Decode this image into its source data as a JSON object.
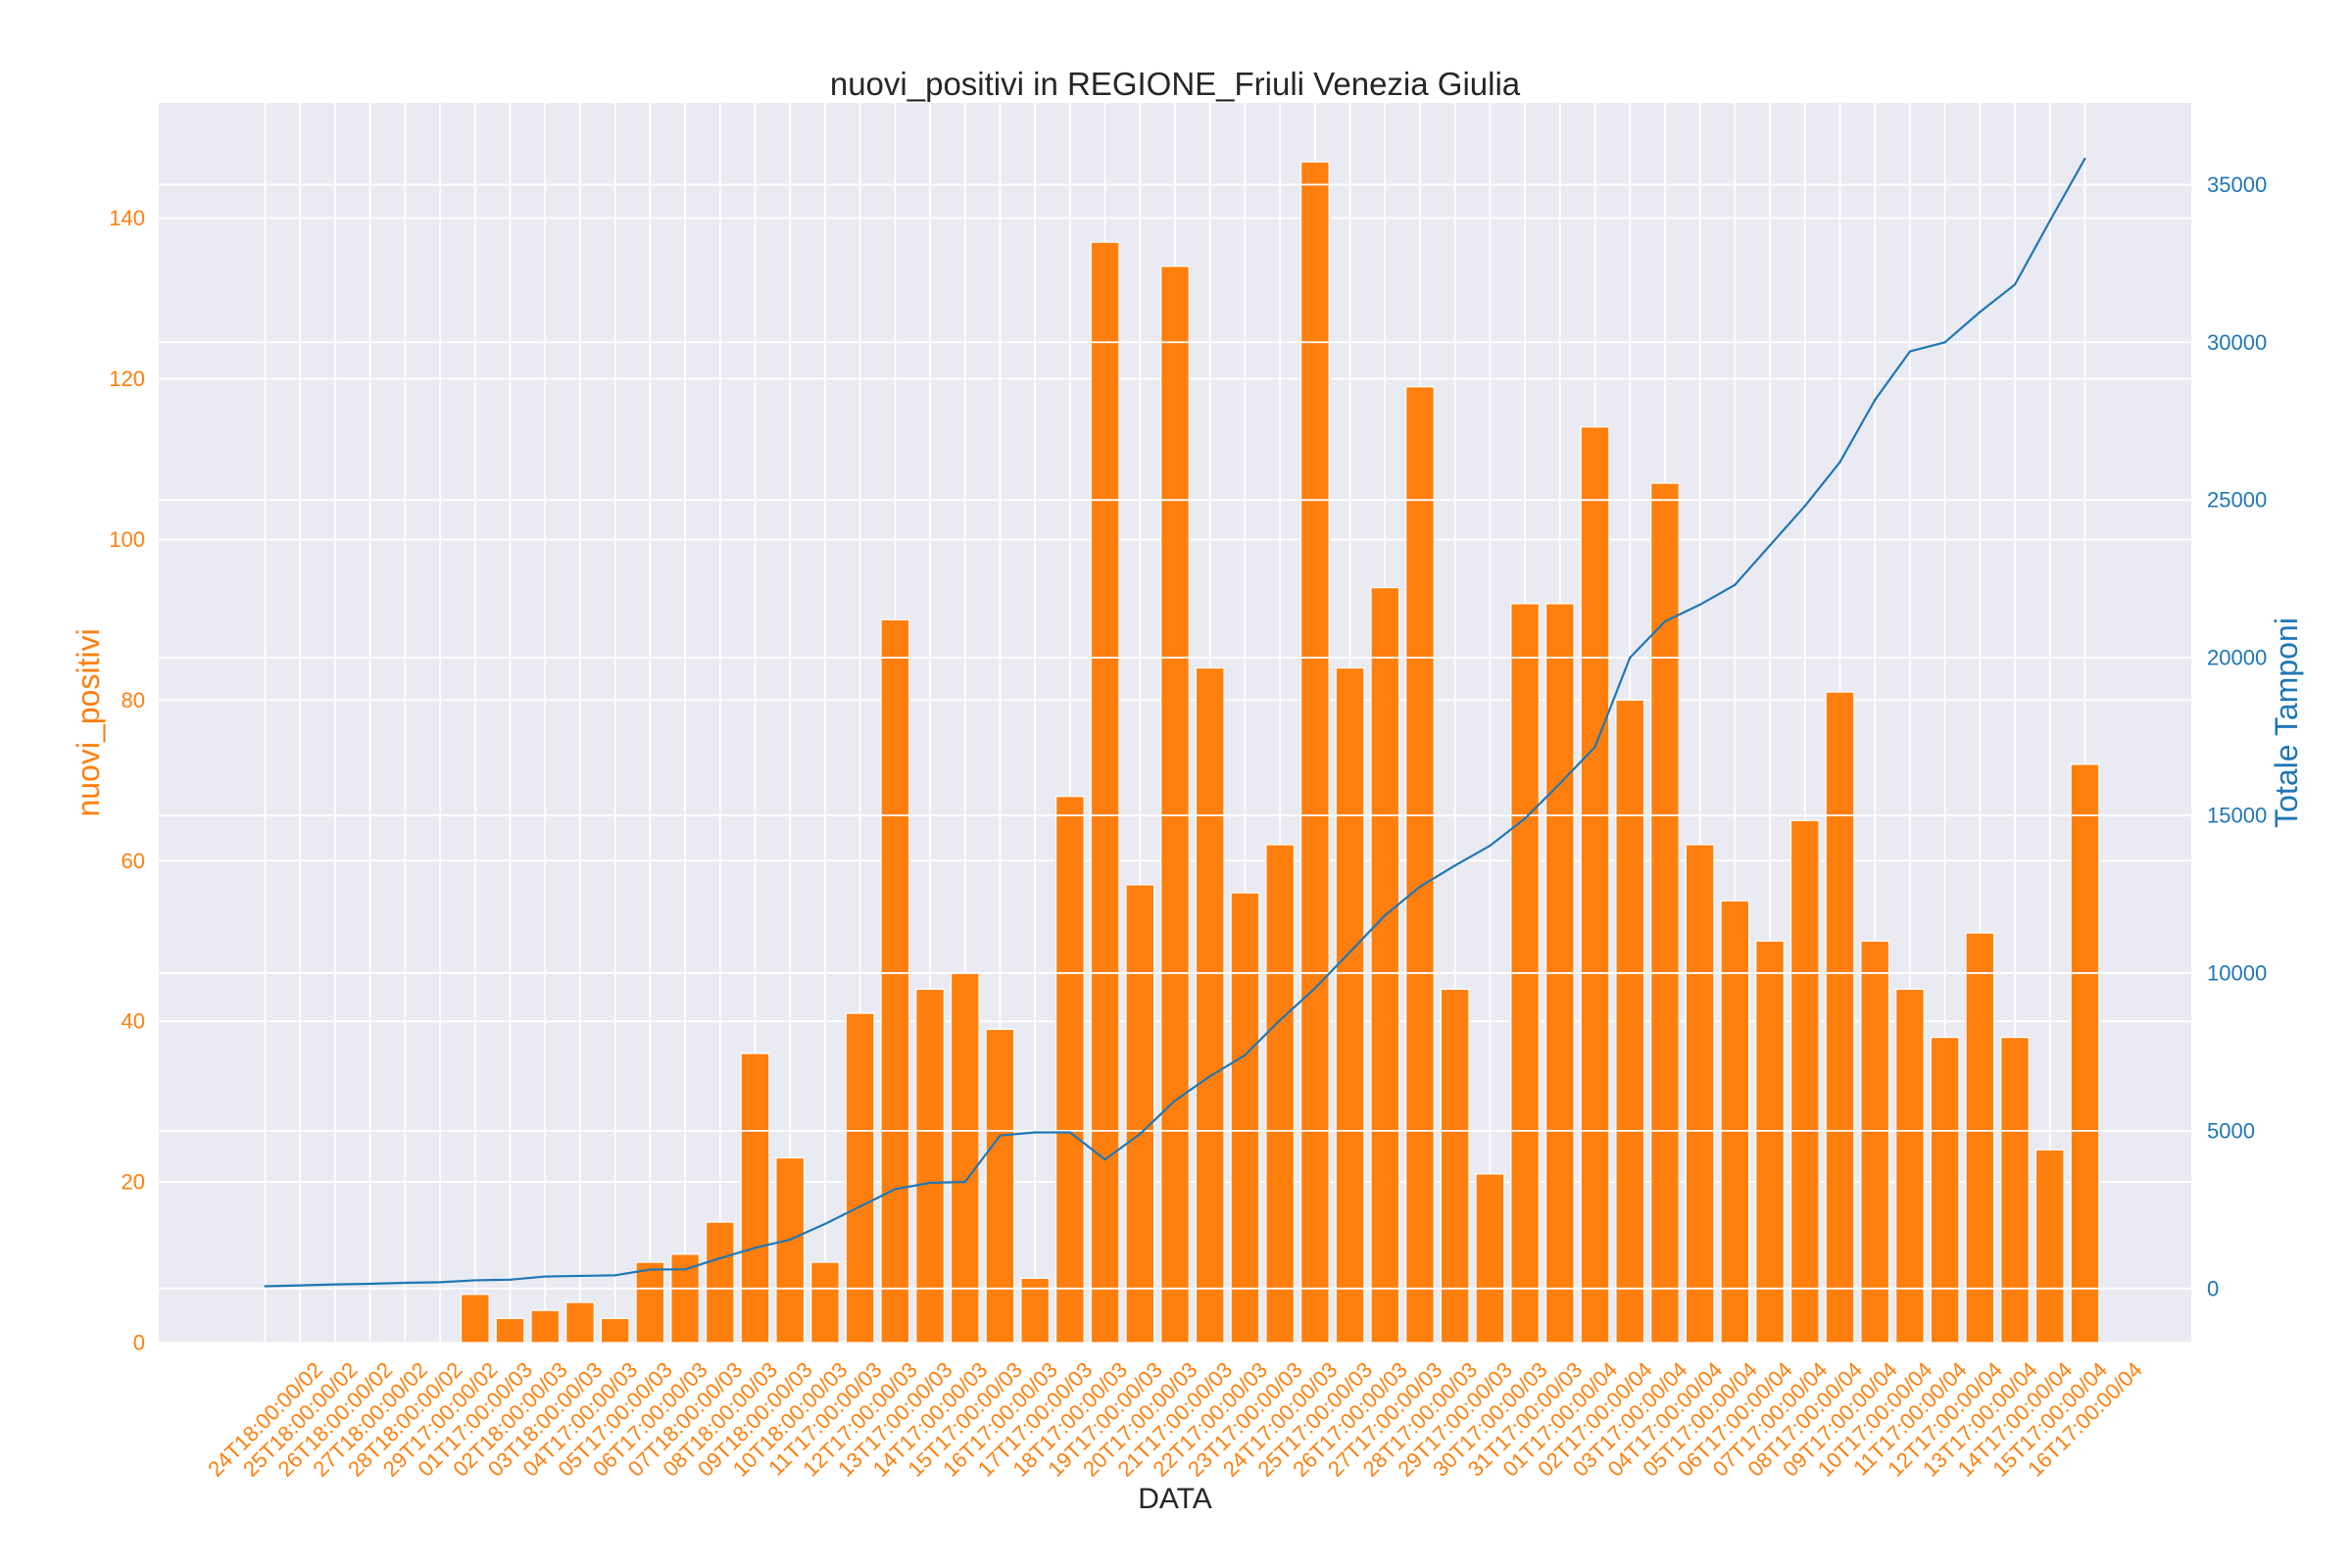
{
  "chart_data": {
    "type": "bar",
    "title": "nuovi_positivi in REGIONE_Friuli Venezia Giulia",
    "xlabel": "DATA",
    "ylabel": "nuovi_positivi",
    "y2label": "Totale Tamponi",
    "categories": [
      "24T18:00:00/02",
      "25T18:00:00/02",
      "26T18:00:00/02",
      "27T18:00:00/02",
      "28T18:00:00/02",
      "29T17:00:00/02",
      "01T17:00:00/03",
      "02T18:00:00/03",
      "03T18:00:00/03",
      "04T17:00:00/03",
      "05T17:00:00/03",
      "06T17:00:00/03",
      "07T18:00:00/03",
      "08T18:00:00/03",
      "09T18:00:00/03",
      "10T18:00:00/03",
      "11T17:00:00/03",
      "12T17:00:00/03",
      "13T17:00:00/03",
      "14T17:00:00/03",
      "15T17:00:00/03",
      "16T17:00:00/03",
      "17T17:00:00/03",
      "18T17:00:00/03",
      "19T17:00:00/03",
      "20T17:00:00/03",
      "21T17:00:00/03",
      "22T17:00:00/03",
      "23T17:00:00/03",
      "24T17:00:00/03",
      "25T17:00:00/03",
      "26T17:00:00/03",
      "27T17:00:00/03",
      "28T17:00:00/03",
      "29T17:00:00/03",
      "30T17:00:00/03",
      "31T17:00:00/03",
      "01T17:00:00/04",
      "02T17:00:00/04",
      "03T17:00:00/04",
      "04T17:00:00/04",
      "05T17:00:00/04",
      "06T17:00:00/04",
      "07T17:00:00/04",
      "08T17:00:00/04",
      "09T17:00:00/04",
      "10T17:00:00/04",
      "11T17:00:00/04",
      "12T17:00:00/04",
      "13T17:00:00/04",
      "14T17:00:00/04",
      "15T17:00:00/04",
      "16T17:00:00/04"
    ],
    "series": [
      {
        "type": "bar",
        "axis": "left",
        "color": "#ff7f0e",
        "values": [
          0,
          0,
          0,
          0,
          0,
          0,
          6,
          3,
          4,
          5,
          3,
          10,
          11,
          15,
          36,
          23,
          10,
          41,
          90,
          44,
          46,
          39,
          8,
          68,
          137,
          57,
          134,
          84,
          56,
          62,
          147,
          84,
          94,
          119,
          44,
          21,
          92,
          92,
          114,
          80,
          107,
          62,
          55,
          50,
          65,
          81,
          50,
          44,
          38,
          51,
          38,
          24,
          72
        ]
      },
      {
        "type": "line",
        "axis": "right",
        "color": "#1f77b4",
        "values": [
          71,
          100,
          130,
          150,
          180,
          200,
          260,
          280,
          380,
          400,
          420,
          600,
          610,
          960,
          1290,
          1550,
          2050,
          2600,
          3150,
          3350,
          3380,
          4850,
          4950,
          4950,
          4090,
          4900,
          5960,
          6730,
          7400,
          8510,
          9520,
          10670,
          11830,
          12740,
          13410,
          14040,
          14900,
          16010,
          17170,
          20000,
          21150,
          21680,
          22310,
          23560,
          24810,
          26200,
          28170,
          29710,
          30000,
          30960,
          31830,
          33850,
          35820
        ]
      }
    ],
    "ylim": [
      0,
      154.35
    ],
    "y2lim": [
      -1715,
      37590
    ],
    "yticks": [
      0,
      20,
      40,
      60,
      80,
      100,
      120,
      140
    ],
    "y2ticks": [
      0,
      5000,
      10000,
      15000,
      20000,
      25000,
      30000,
      35000
    ],
    "grid": true,
    "colors": {
      "background": "#eaeaf2",
      "grid": "#ffffff",
      "left_axis": "#ff7f0e",
      "right_axis": "#1f77b4",
      "text": "#262626"
    }
  }
}
